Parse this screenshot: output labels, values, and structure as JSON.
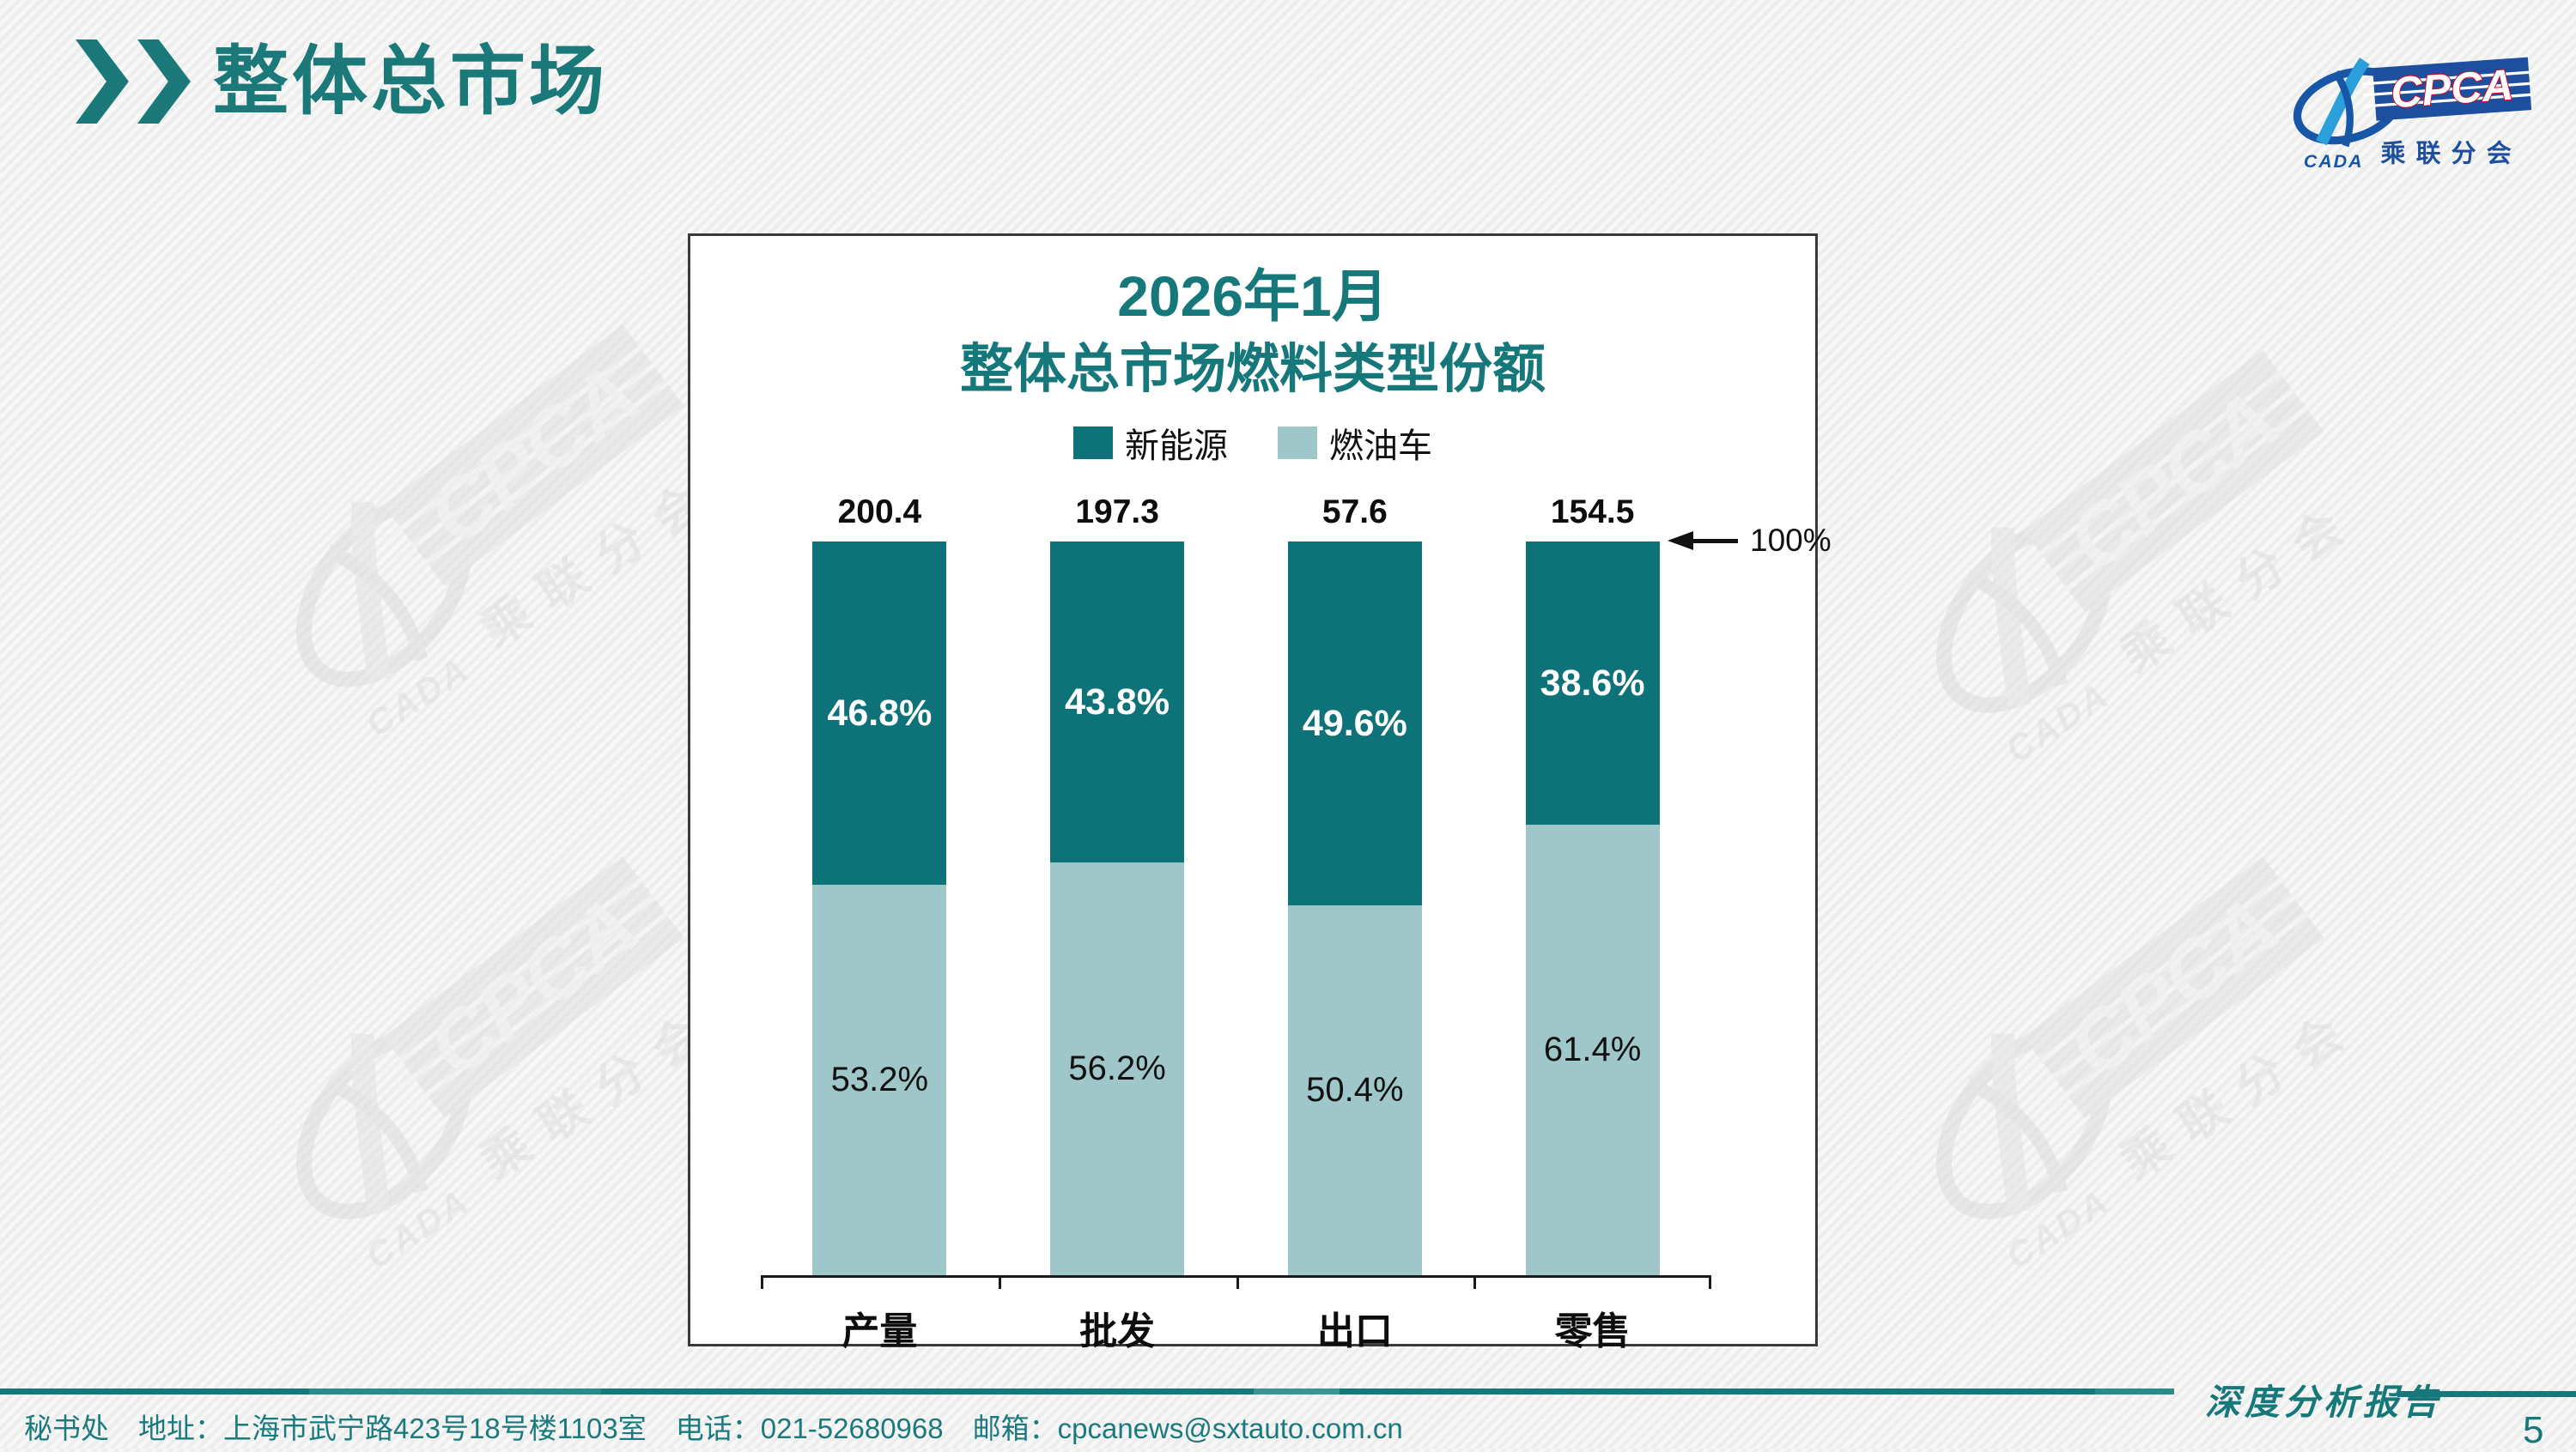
{
  "header": {
    "title": "整体总市场"
  },
  "logo": {
    "cpca": "CPCA",
    "sub": "乘联分会",
    "cada": "CADA"
  },
  "chart": {
    "title_line1": "2026年1月",
    "title_line2": "整体总市场燃料类型份额",
    "annotation": "100%"
  },
  "chart_data": {
    "type": "bar",
    "subtype": "stacked-percent",
    "title": "2026年1月 整体总市场燃料类型份额",
    "categories": [
      "产量",
      "批发",
      "出口",
      "零售"
    ],
    "totals": [
      200.4,
      197.3,
      57.6,
      154.5
    ],
    "series": [
      {
        "name": "新能源",
        "color": "#0E7378",
        "values": [
          46.8,
          43.8,
          49.6,
          38.6
        ]
      },
      {
        "name": "燃油车",
        "color": "#9FC6C9",
        "values": [
          53.2,
          56.2,
          50.4,
          61.4
        ]
      }
    ],
    "unit": "%",
    "ylim": [
      0,
      100
    ],
    "legend_position": "top",
    "grid": false,
    "axis_annotation": "100%"
  },
  "colors": {
    "accent_teal": "#16787a",
    "bar_dark": "#0E7378",
    "bar_light": "#9FC6C9"
  },
  "footer": {
    "secretariat": "秘书处",
    "address": "地址：上海市武宁路423号18号楼1103室",
    "phone": "电话：021-52680968",
    "email": "邮箱：cpcanews@sxtauto.com.cn",
    "report_label": "深度分析报告",
    "page_number": "5"
  }
}
